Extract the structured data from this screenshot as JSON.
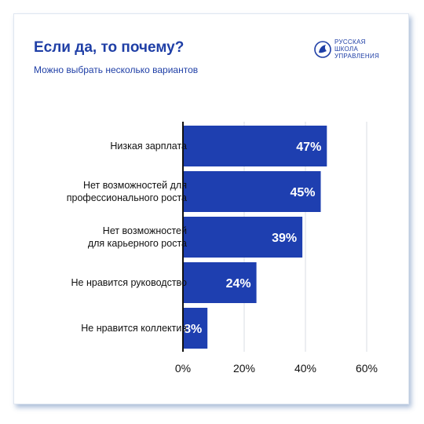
{
  "header": {
    "title": "Если да, то почему?",
    "subtitle": "Можно выбрать несколько вариантов",
    "logo_lines": [
      "РУССКАЯ",
      "ШКОЛА",
      "УПРАВЛЕНИЯ"
    ]
  },
  "colors": {
    "bar": "#1e3fb0",
    "accent": "#1f3fa6",
    "grid": "#d9dce3",
    "axis": "#111111"
  },
  "chart_data": {
    "type": "bar",
    "orientation": "horizontal",
    "categories": [
      "Низкая зарплата",
      "Нет возможностей для\nпрофессионального роста",
      "Нет возможностей\nдля карьерного роста",
      "Не нравится руководство",
      "Не нравится коллектив"
    ],
    "values": [
      47,
      45,
      39,
      24,
      8
    ],
    "value_labels": [
      "47%",
      "45%",
      "39%",
      "24%",
      "8%"
    ],
    "xlim": [
      0,
      60
    ],
    "xticks": [
      0,
      20,
      40,
      60
    ],
    "xtick_labels": [
      "0%",
      "20%",
      "40%",
      "60%"
    ],
    "grid": true
  }
}
